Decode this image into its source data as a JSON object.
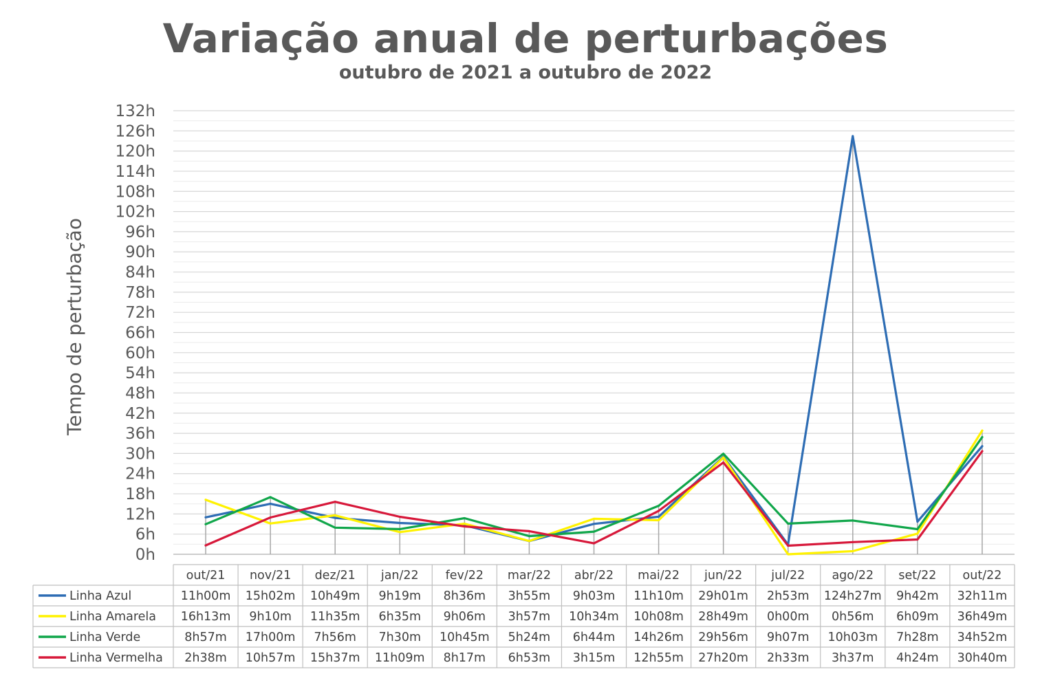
{
  "title": "Variação anual de perturbações",
  "subtitle": "outubro de 2021 a outubro de 2022",
  "chart_data": {
    "type": "line",
    "ylabel": "Tempo de perturbação",
    "xlabel": "",
    "ylim": [
      0,
      132
    ],
    "y_tick_step": 6,
    "y_tick_suffix": "h",
    "grid": "horizontal",
    "legend_placement": "data-table-left",
    "categories": [
      "out/21",
      "nov/21",
      "dez/21",
      "jan/22",
      "fev/22",
      "mar/22",
      "abr/22",
      "mai/22",
      "jun/22",
      "jul/22",
      "ago/22",
      "set/22",
      "out/22"
    ],
    "series": [
      {
        "name": "Linha Azul",
        "color": "#2E6DB4",
        "values": [
          11.0,
          15.03,
          10.82,
          9.32,
          8.6,
          3.92,
          9.05,
          11.17,
          29.02,
          2.88,
          124.45,
          9.7,
          32.18
        ],
        "labels": [
          "11h00m",
          "15h02m",
          "10h49m",
          "9h19m",
          "8h36m",
          "3h55m",
          "9h03m",
          "11h10m",
          "29h01m",
          "2h53m",
          "124h27m",
          "9h42m",
          "32h11m"
        ]
      },
      {
        "name": "Linha Amarela",
        "color": "#FFF200",
        "values": [
          16.22,
          9.17,
          11.58,
          6.58,
          9.1,
          3.95,
          10.57,
          10.13,
          28.82,
          0.0,
          0.93,
          6.15,
          36.82
        ],
        "labels": [
          "16h13m",
          "9h10m",
          "11h35m",
          "6h35m",
          "9h06m",
          "3h57m",
          "10h34m",
          "10h08m",
          "28h49m",
          "0h00m",
          "0h56m",
          "6h09m",
          "36h49m"
        ]
      },
      {
        "name": "Linha Verde",
        "color": "#10A64A",
        "values": [
          8.95,
          17.0,
          7.93,
          7.5,
          10.75,
          5.4,
          6.73,
          14.43,
          29.93,
          9.12,
          10.05,
          7.47,
          34.87
        ],
        "labels": [
          "8h57m",
          "17h00m",
          "7h56m",
          "7h30m",
          "10h45m",
          "5h24m",
          "6h44m",
          "14h26m",
          "29h56m",
          "9h07m",
          "10h03m",
          "7h28m",
          "34h52m"
        ]
      },
      {
        "name": "Linha Vermelha",
        "color": "#D7183A",
        "values": [
          2.63,
          10.95,
          15.62,
          11.15,
          8.28,
          6.88,
          3.25,
          12.92,
          27.33,
          2.55,
          3.62,
          4.4,
          30.67
        ],
        "labels": [
          "2h38m",
          "10h57m",
          "15h37m",
          "11h09m",
          "8h17m",
          "6h53m",
          "3h15m",
          "12h55m",
          "27h20m",
          "2h33m",
          "3h37m",
          "4h24m",
          "30h40m"
        ]
      }
    ]
  }
}
